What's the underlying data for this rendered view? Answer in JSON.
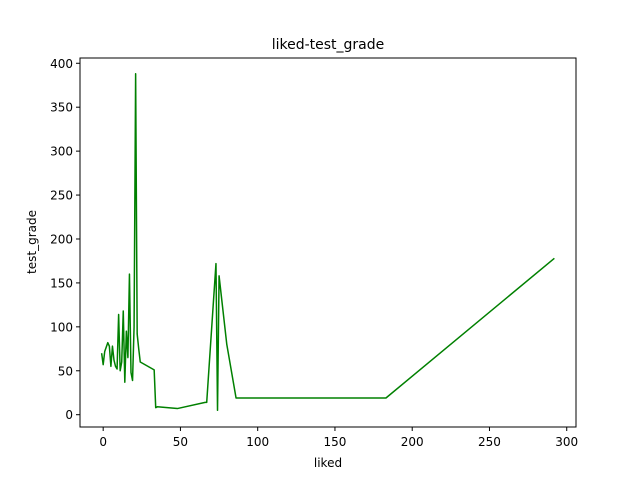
{
  "chart_data": {
    "type": "line",
    "title": "liked-test_grade",
    "xlabel": "liked",
    "ylabel": "test_grade",
    "xlim": [
      -15,
      306
    ],
    "ylim": [
      -14,
      406
    ],
    "xticks": [
      0,
      50,
      100,
      150,
      200,
      250,
      300
    ],
    "yticks": [
      0,
      50,
      100,
      150,
      200,
      250,
      300,
      350,
      400
    ],
    "grid": false,
    "color": "#008000",
    "series": [
      {
        "x": [
          -1,
          0,
          1,
          3,
          4,
          5,
          6,
          7,
          8,
          9,
          10,
          11,
          12,
          13,
          14,
          15,
          16,
          17,
          18,
          19,
          20,
          21,
          22,
          23,
          24,
          27,
          33,
          34,
          35,
          48,
          66,
          67,
          73,
          74,
          75,
          80,
          86,
          183,
          292
        ],
        "y": [
          70,
          57,
          72,
          82,
          78,
          55,
          78,
          62,
          55,
          52,
          114,
          50,
          60,
          118,
          37,
          95,
          65,
          160,
          48,
          39,
          100,
          388,
          92,
          75,
          60,
          57,
          51,
          8,
          9,
          7,
          14,
          14,
          172,
          5,
          158,
          80,
          19,
          19,
          178
        ]
      }
    ]
  }
}
